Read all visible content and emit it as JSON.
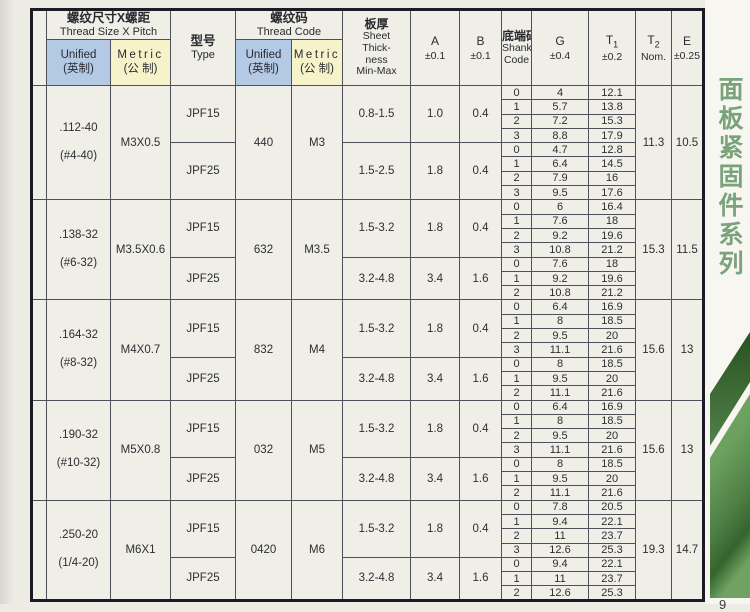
{
  "page": {
    "bg": "#ecebe4",
    "table_bg": "#efeee7",
    "grid_line": "#50505a",
    "outer_border": "#1b1b26",
    "unified_header_bg": "#b3c9e4",
    "metric_header_bg": "#f6f3cb"
  },
  "header": {
    "thread_size": {
      "zh": "螺纹尺寸X螺距",
      "en": "Thread Size X Pitch"
    },
    "type": {
      "zh": "型号",
      "en": "Type"
    },
    "thread_code": {
      "zh": "螺纹码",
      "en": "Thread Code"
    },
    "unified": {
      "en": "Unified",
      "zh": "(英制)"
    },
    "metric": {
      "en": "Metric",
      "zh": "(公 制)"
    },
    "sheet": {
      "zh": "板厚",
      "en_lines": [
        "Sheet",
        "Thick-",
        "ness",
        "Min-Max"
      ]
    },
    "a": {
      "label": "A",
      "tol": "±0.1"
    },
    "b": {
      "label": "B",
      "tol": "±0.1"
    },
    "shank": {
      "zh": "底端码",
      "en_lines": [
        "Shank",
        "Code"
      ]
    },
    "g": {
      "label": "G",
      "tol": "±0.4"
    },
    "t1": {
      "label": "T",
      "sub": "1",
      "tol": "±0.2"
    },
    "t2": {
      "label": "T",
      "sub": "2",
      "tol": "Nom."
    },
    "e": {
      "label": "E",
      "tol": "±0.25"
    }
  },
  "groups": [
    {
      "unified": ".112-40",
      "unified_alt": "(#4-40)",
      "metric": "M3X0.5",
      "code_unified": "440",
      "code_metric": "M3",
      "t2": "11.3",
      "e": "10.5",
      "subgroups": [
        {
          "type": "JPF15",
          "sheet": "0.8-1.5",
          "a": "1.0",
          "b": "0.4",
          "rows": [
            [
              "0",
              "4",
              "12.1"
            ],
            [
              "1",
              "5.7",
              "13.8"
            ],
            [
              "2",
              "7.2",
              "15.3"
            ],
            [
              "3",
              "8.8",
              "17.9"
            ]
          ]
        },
        {
          "type": "JPF25",
          "sheet": "1.5-2.5",
          "a": "1.8",
          "b": "0.4",
          "rows": [
            [
              "0",
              "4.7",
              "12.8"
            ],
            [
              "1",
              "6.4",
              "14.5"
            ],
            [
              "2",
              "7.9",
              "16"
            ],
            [
              "3",
              "9.5",
              "17.6"
            ]
          ]
        }
      ]
    },
    {
      "unified": ".138-32",
      "unified_alt": "(#6-32)",
      "metric": "M3.5X0.6",
      "code_unified": "632",
      "code_metric": "M3.5",
      "t2": "15.3",
      "e": "11.5",
      "subgroups": [
        {
          "type": "JPF15",
          "sheet": "1.5-3.2",
          "a": "1.8",
          "b": "0.4",
          "rows": [
            [
              "0",
              "6",
              "16.4"
            ],
            [
              "1",
              "7.6",
              "18"
            ],
            [
              "2",
              "9.2",
              "19.6"
            ],
            [
              "3",
              "10.8",
              "21.2"
            ]
          ]
        },
        {
          "type": "JPF25",
          "sheet": "3.2-4.8",
          "a": "3.4",
          "b": "1.6",
          "rows": [
            [
              "0",
              "7.6",
              "18"
            ],
            [
              "1",
              "9.2",
              "19.6"
            ],
            [
              "2",
              "10.8",
              "21.2"
            ]
          ]
        }
      ]
    },
    {
      "unified": ".164-32",
      "unified_alt": "(#8-32)",
      "metric": "M4X0.7",
      "code_unified": "832",
      "code_metric": "M4",
      "t2": "15.6",
      "e": "13",
      "subgroups": [
        {
          "type": "JPF15",
          "sheet": "1.5-3.2",
          "a": "1.8",
          "b": "0.4",
          "rows": [
            [
              "0",
              "6.4",
              "16.9"
            ],
            [
              "1",
              "8",
              "18.5"
            ],
            [
              "2",
              "9.5",
              "20"
            ],
            [
              "3",
              "11.1",
              "21.6"
            ]
          ]
        },
        {
          "type": "JPF25",
          "sheet": "3.2-4.8",
          "a": "3.4",
          "b": "1.6",
          "rows": [
            [
              "0",
              "8",
              "18.5"
            ],
            [
              "1",
              "9.5",
              "20"
            ],
            [
              "2",
              "11.1",
              "21.6"
            ]
          ]
        }
      ]
    },
    {
      "unified": ".190-32",
      "unified_alt": "(#10-32)",
      "metric": "M5X0.8",
      "code_unified": "032",
      "code_metric": "M5",
      "t2": "15.6",
      "e": "13",
      "subgroups": [
        {
          "type": "JPF15",
          "sheet": "1.5-3.2",
          "a": "1.8",
          "b": "0.4",
          "rows": [
            [
              "0",
              "6.4",
              "16.9"
            ],
            [
              "1",
              "8",
              "18.5"
            ],
            [
              "2",
              "9.5",
              "20"
            ],
            [
              "3",
              "11.1",
              "21.6"
            ]
          ]
        },
        {
          "type": "JPF25",
          "sheet": "3.2-4.8",
          "a": "3.4",
          "b": "1.6",
          "rows": [
            [
              "0",
              "8",
              "18.5"
            ],
            [
              "1",
              "9.5",
              "20"
            ],
            [
              "2",
              "11.1",
              "21.6"
            ]
          ]
        }
      ]
    },
    {
      "unified": ".250-20",
      "unified_alt": "(1/4-20)",
      "metric": "M6X1",
      "code_unified": "0420",
      "code_metric": "M6",
      "t2": "19.3",
      "e": "14.7",
      "subgroups": [
        {
          "type": "JPF15",
          "sheet": "1.5-3.2",
          "a": "1.8",
          "b": "0.4",
          "rows": [
            [
              "0",
              "7.8",
              "20.5"
            ],
            [
              "1",
              "9.4",
              "22.1"
            ],
            [
              "2",
              "11",
              "23.7"
            ],
            [
              "3",
              "12.6",
              "25.3"
            ]
          ]
        },
        {
          "type": "JPF25",
          "sheet": "3.2-4.8",
          "a": "3.4",
          "b": "1.6",
          "rows": [
            [
              "0",
              "9.4",
              "22.1"
            ],
            [
              "1",
              "11",
              "23.7"
            ],
            [
              "2",
              "12.6",
              "25.3"
            ]
          ]
        }
      ]
    }
  ],
  "sidebar": {
    "title": "面板紧固件系列",
    "title_color": "#7ba37b",
    "band_colors": {
      "top_dark": "#28521f",
      "top_light": "#52814a",
      "body_light": "#74a868",
      "body_dark": "#35652e"
    },
    "page_mark": "9"
  }
}
